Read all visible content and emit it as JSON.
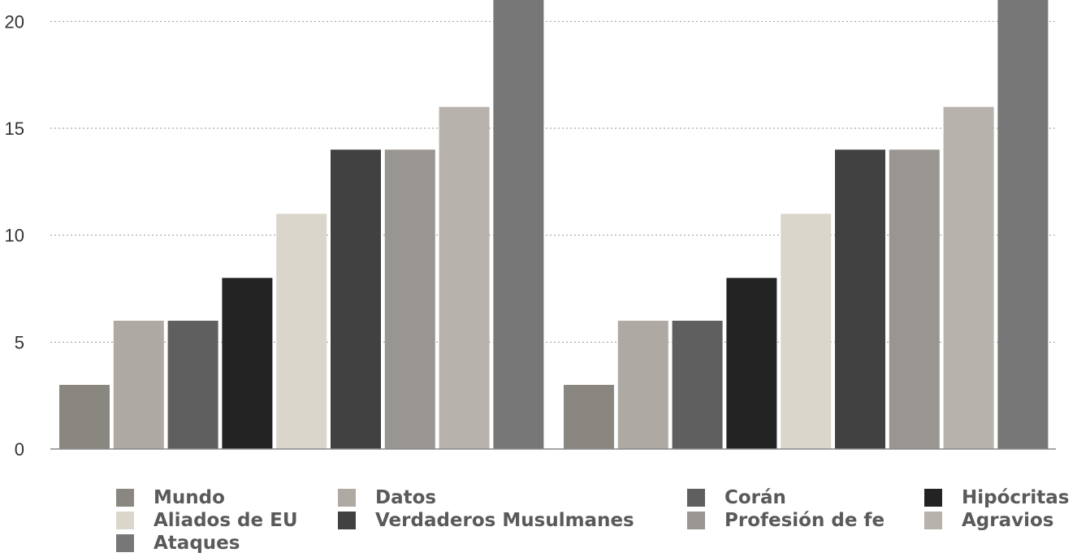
{
  "chart_data": {
    "type": "bar",
    "title": "",
    "xlabel": "",
    "ylabel": "",
    "ylim": [
      0,
      21
    ],
    "yticks": [
      0,
      5,
      10,
      15,
      20
    ],
    "grid": true,
    "legend_position": "bottom",
    "categories": [
      "Mundo",
      "Datos",
      "Corán",
      "Hipócritas",
      "Aliados de EU",
      "Verdaderos Musulmanes",
      "Profesión de fe",
      "Agravios",
      "Ataques"
    ],
    "colors": [
      "#8a8680",
      "#aeaaa3",
      "#5f5f5f",
      "#232323",
      "#dbd6cc",
      "#414141",
      "#999590",
      "#b7b3ac",
      "#777777"
    ],
    "groups": [
      {
        "values": [
          3,
          6,
          6,
          8,
          11,
          14,
          14,
          16,
          21
        ]
      },
      {
        "values": [
          3,
          6,
          6,
          8,
          11,
          14,
          14,
          16,
          21
        ]
      }
    ]
  },
  "legend": {
    "items": [
      {
        "label": "Mundo",
        "color": "#8a8680"
      },
      {
        "label": "Datos",
        "color": "#aeaaa3"
      },
      {
        "label": "Corán",
        "color": "#5f5f5f"
      },
      {
        "label": "Hipócritas",
        "color": "#232323"
      },
      {
        "label": "Aliados de EU",
        "color": "#dbd6cc"
      },
      {
        "label": "Verdaderos Musulmanes",
        "color": "#414141"
      },
      {
        "label": "Profesión de fe",
        "color": "#999590"
      },
      {
        "label": "Agravios",
        "color": "#b7b3ac"
      },
      {
        "label": "Ataques",
        "color": "#777777"
      }
    ]
  }
}
